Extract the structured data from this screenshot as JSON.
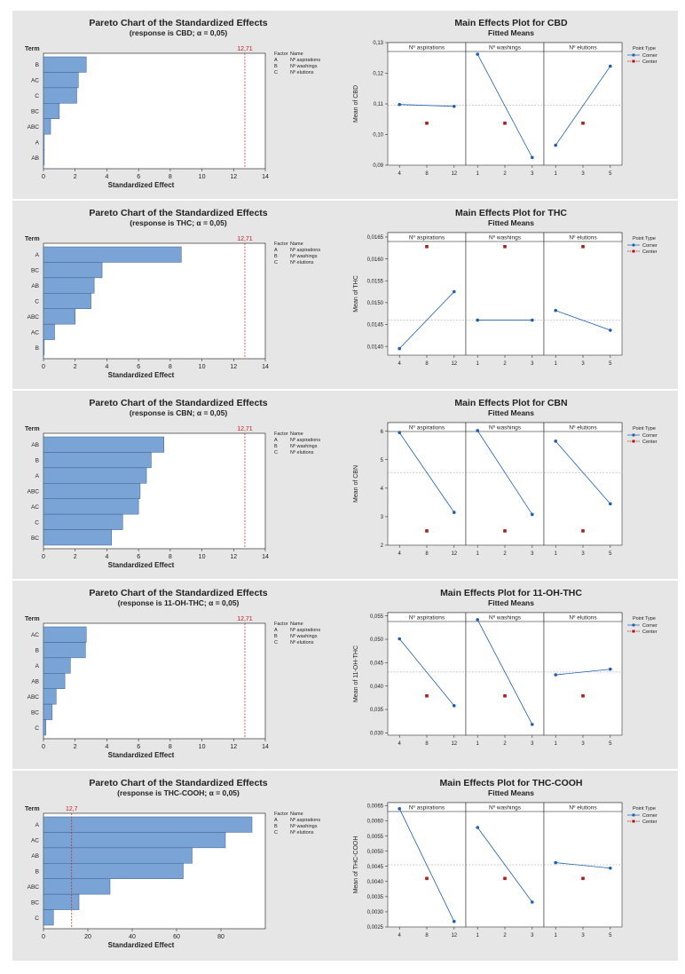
{
  "colors": {
    "panel_bg": "#e6e6e6",
    "bar_fill": "#7aa3d6",
    "bar_stroke": "#3d5f8c",
    "ref_line": "#c02020",
    "corner": "#1f5fb0",
    "center": "#b01c1c",
    "axis": "#333333",
    "grid": "#999999"
  },
  "chart_data": [
    {
      "type": "bar",
      "id": "pareto-cbd",
      "title": "Pareto Chart of the Standardized Effects",
      "subtitle": "(response is CBD; α = 0,05)",
      "xlabel": "Standardized Effect",
      "term_header": "Term",
      "categories": [
        "B",
        "AC",
        "C",
        "BC",
        "ABC",
        "A",
        "AB"
      ],
      "values": [
        2.7,
        2.2,
        2.1,
        1.0,
        0.45,
        0.05,
        0.05
      ],
      "xlim": [
        0,
        14
      ],
      "xticks": [
        "0",
        "2",
        "4",
        "6",
        "8",
        "10",
        "12",
        "14"
      ],
      "ref_value": 12.71,
      "ref_label": "12,71",
      "legend": {
        "header_factor": "Factor",
        "header_name": "Name",
        "rows": [
          [
            "A",
            "Nº aspirations"
          ],
          [
            "B",
            "Nº washings"
          ],
          [
            "C",
            "Nº elutions"
          ]
        ]
      }
    },
    {
      "type": "line",
      "id": "main-cbd",
      "title": "Main Effects Plot for CBD",
      "subtitle": "Fitted Means",
      "ylabel": "Mean of CBD",
      "ylim": [
        0.09,
        0.13
      ],
      "yticks": [
        "0,09",
        "0,10",
        "0,11",
        "0,12",
        "0,13"
      ],
      "ytick_values": [
        0.09,
        0.1,
        0.11,
        0.12,
        0.13
      ],
      "overall_mean": 0.1095,
      "panels": [
        {
          "name": "Nº aspirations",
          "levels": [
            "4",
            "8",
            "12"
          ],
          "corner": [
            0.1098,
            0.1092
          ],
          "center": 0.1037
        },
        {
          "name": "Nº washings",
          "levels": [
            "1",
            "2",
            "3"
          ],
          "corner": [
            0.1262,
            0.0925
          ],
          "center": 0.1037
        },
        {
          "name": "Nº elutions",
          "levels": [
            "1",
            "3",
            "5"
          ],
          "corner": [
            0.0965,
            0.1223
          ],
          "center": 0.1037
        }
      ],
      "legend": {
        "title": "Point Type",
        "corner": "Corner",
        "center": "Center"
      }
    },
    {
      "type": "bar",
      "id": "pareto-thc",
      "title": "Pareto Chart of the Standardized Effects",
      "subtitle": "(response is THC; α = 0,05)",
      "xlabel": "Standardized Effect",
      "term_header": "Term",
      "categories": [
        "A",
        "BC",
        "AB",
        "C",
        "ABC",
        "AC",
        "B"
      ],
      "values": [
        8.7,
        3.7,
        3.2,
        3.0,
        2.0,
        0.7,
        0.05
      ],
      "xlim": [
        0,
        14
      ],
      "xticks": [
        "0",
        "2",
        "4",
        "6",
        "8",
        "10",
        "12",
        "14"
      ],
      "ref_value": 12.71,
      "ref_label": "12,71",
      "legend": {
        "header_factor": "Factor",
        "header_name": "Name",
        "rows": [
          [
            "A",
            "Nº aspirations"
          ],
          [
            "B",
            "Nº washings"
          ],
          [
            "C",
            "Nº elutions"
          ]
        ]
      }
    },
    {
      "type": "line",
      "id": "main-thc",
      "title": "Main Effects Plot for THC",
      "subtitle": "Fitted Means",
      "ylabel": "Mean of THC",
      "ylim": [
        0.0138,
        0.0166
      ],
      "yticks": [
        "0,0140",
        "0,0145",
        "0,0150",
        "0,0155",
        "0,0160",
        "0,0165"
      ],
      "ytick_values": [
        0.014,
        0.0145,
        0.015,
        0.0155,
        0.016,
        0.0165
      ],
      "overall_mean": 0.0146,
      "panels": [
        {
          "name": "Nº aspirations",
          "levels": [
            "4",
            "8",
            "12"
          ],
          "corner": [
            0.01395,
            0.01525
          ],
          "center": 0.01628
        },
        {
          "name": "Nº washings",
          "levels": [
            "1",
            "2",
            "3"
          ],
          "corner": [
            0.0146,
            0.0146
          ],
          "center": 0.01628
        },
        {
          "name": "Nº elutions",
          "levels": [
            "1",
            "3",
            "5"
          ],
          "corner": [
            0.01482,
            0.01437
          ],
          "center": 0.01628
        }
      ],
      "legend": {
        "title": "Point Type",
        "corner": "Corner",
        "center": "Center"
      }
    },
    {
      "type": "bar",
      "id": "pareto-cbn",
      "title": "Pareto Chart of the Standardized Effects",
      "subtitle": "(response is CBN; α = 0,05)",
      "xlabel": "Standardized Effect",
      "term_header": "Term",
      "categories": [
        "AB",
        "B",
        "A",
        "ABC",
        "AC",
        "C",
        "BC"
      ],
      "values": [
        7.6,
        6.8,
        6.5,
        6.1,
        6.0,
        5.0,
        4.3
      ],
      "xlim": [
        0,
        14
      ],
      "xticks": [
        "0",
        "2",
        "4",
        "6",
        "8",
        "10",
        "12",
        "14"
      ],
      "ref_value": 12.71,
      "ref_label": "12,71",
      "legend": {
        "header_factor": "Factor",
        "header_name": "Name",
        "rows": [
          [
            "A",
            "Nº aspirations"
          ],
          [
            "B",
            "Nº washings"
          ],
          [
            "C",
            "Nº elutions"
          ]
        ]
      }
    },
    {
      "type": "line",
      "id": "main-cbn",
      "title": "Main Effects Plot for CBN",
      "subtitle": "Fitted Means",
      "ylabel": "Mean of CBN",
      "ylim": [
        2.0,
        6.3
      ],
      "yticks": [
        "2",
        "3",
        "4",
        "5",
        "6"
      ],
      "ytick_values": [
        2,
        3,
        4,
        5,
        6
      ],
      "overall_mean": 4.55,
      "panels": [
        {
          "name": "Nº aspirations",
          "levels": [
            "4",
            "8",
            "12"
          ],
          "corner": [
            5.95,
            3.15
          ],
          "center": 2.5
        },
        {
          "name": "Nº washings",
          "levels": [
            "1",
            "2",
            "3"
          ],
          "corner": [
            6.02,
            3.08
          ],
          "center": 2.5
        },
        {
          "name": "Nº elutions",
          "levels": [
            "1",
            "3",
            "5"
          ],
          "corner": [
            5.65,
            3.45
          ],
          "center": 2.5
        }
      ],
      "legend": {
        "title": "Point Type",
        "corner": "Corner",
        "center": "Center"
      }
    },
    {
      "type": "bar",
      "id": "pareto-11oh",
      "title": "Pareto Chart of the Standardized Effects",
      "subtitle": "(response is 11-OH-THC; α = 0,05)",
      "xlabel": "Standardized Effect",
      "term_header": "Term",
      "categories": [
        "AC",
        "B",
        "A",
        "AB",
        "ABC",
        "BC",
        "C"
      ],
      "values": [
        2.7,
        2.65,
        1.7,
        1.35,
        0.8,
        0.55,
        0.15
      ],
      "xlim": [
        0,
        14
      ],
      "xticks": [
        "0",
        "2",
        "4",
        "6",
        "8",
        "10",
        "12",
        "14"
      ],
      "ref_value": 12.71,
      "ref_label": "12,71",
      "legend": {
        "header_factor": "Factor",
        "header_name": "Name",
        "rows": [
          [
            "A",
            "Nº aspirations"
          ],
          [
            "B",
            "Nº washings"
          ],
          [
            "C",
            "Nº elutions"
          ]
        ]
      }
    },
    {
      "type": "line",
      "id": "main-11oh",
      "title": "Main Effects Plot for 11-OH-THC",
      "subtitle": "Fitted Means",
      "ylabel": "Mean of 11-OH-THC",
      "ylim": [
        0.0295,
        0.0557
      ],
      "yticks": [
        "0,030",
        "0,035",
        "0,040",
        "0,045",
        "0,050",
        "0,055"
      ],
      "ytick_values": [
        0.03,
        0.035,
        0.04,
        0.045,
        0.05,
        0.055
      ],
      "overall_mean": 0.043,
      "panels": [
        {
          "name": "Nº aspirations",
          "levels": [
            "4",
            "8",
            "12"
          ],
          "corner": [
            0.0501,
            0.0358
          ],
          "center": 0.0379
        },
        {
          "name": "Nº washings",
          "levels": [
            "1",
            "2",
            "3"
          ],
          "corner": [
            0.0542,
            0.0318
          ],
          "center": 0.0379
        },
        {
          "name": "Nº elutions",
          "levels": [
            "1",
            "3",
            "5"
          ],
          "corner": [
            0.0424,
            0.0436
          ],
          "center": 0.0379
        }
      ],
      "legend": {
        "title": "Point Type",
        "corner": "Corner",
        "center": "Center"
      }
    },
    {
      "type": "bar",
      "id": "pareto-thccooh",
      "title": "Pareto Chart of the Standardized Effects",
      "subtitle": "(response is THC-COOH; α = 0,05)",
      "xlabel": "Standardized Effect",
      "term_header": "Term",
      "categories": [
        "A",
        "AC",
        "AB",
        "B",
        "ABC",
        "BC",
        "C"
      ],
      "values": [
        94,
        82,
        67,
        63,
        30,
        16,
        4.5
      ],
      "xlim": [
        0,
        100
      ],
      "xticks": [
        "0",
        "20",
        "40",
        "60",
        "80"
      ],
      "xtick_values": [
        0,
        20,
        40,
        60,
        80
      ],
      "ref_value": 12.7,
      "ref_label": "12,7",
      "legend": {
        "header_factor": "Factor",
        "header_name": "Name",
        "rows": [
          [
            "A",
            "Nº aspirations"
          ],
          [
            "B",
            "Nº washings"
          ],
          [
            "C",
            "Nº elutions"
          ]
        ]
      }
    },
    {
      "type": "line",
      "id": "main-thccooh",
      "title": "Main Effects Plot for THC-COOH",
      "subtitle": "Fitted Means",
      "ylabel": "Mean of THC-COOH",
      "ylim": [
        0.0025,
        0.0066
      ],
      "yticks": [
        "0,0025",
        "0,0030",
        "0,0035",
        "0,0040",
        "0,0045",
        "0,0050",
        "0,0055",
        "0,0060",
        "0,0065"
      ],
      "ytick_values": [
        0.0025,
        0.003,
        0.0035,
        0.004,
        0.0045,
        0.005,
        0.0055,
        0.006,
        0.0065
      ],
      "overall_mean": 0.00455,
      "panels": [
        {
          "name": "Nº aspirations",
          "levels": [
            "4",
            "8",
            "12"
          ],
          "corner": [
            0.0064,
            0.00268
          ],
          "center": 0.0041
        },
        {
          "name": "Nº washings",
          "levels": [
            "1",
            "2",
            "3"
          ],
          "corner": [
            0.00578,
            0.00332
          ],
          "center": 0.0041
        },
        {
          "name": "Nº elutions",
          "levels": [
            "1",
            "3",
            "5"
          ],
          "corner": [
            0.00462,
            0.00444
          ],
          "center": 0.0041
        }
      ],
      "legend": {
        "title": "Point Type",
        "corner": "Corner",
        "center": "Center"
      }
    }
  ]
}
